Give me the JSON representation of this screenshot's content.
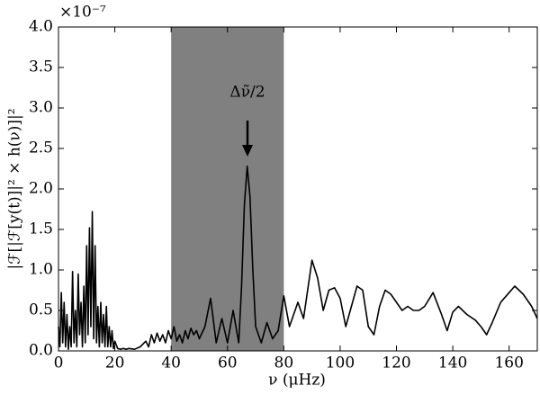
{
  "chart_data": {
    "type": "line",
    "x_label": "ν (μHz)",
    "y_label": "|ℱ[|ℱ[y(t)]|² × h(ν)]|²",
    "y_offset_label": "×10⁻⁷",
    "annotation": "Δν̃/2",
    "shaded_span": [
      40,
      80
    ],
    "shade_color": "#808080",
    "color": "#000000",
    "x": [
      0,
      0.5,
      1,
      1.5,
      2,
      2.5,
      3,
      3.5,
      4,
      4.5,
      5,
      5.5,
      6,
      6.5,
      7,
      7.5,
      8,
      8.5,
      9,
      9.5,
      10,
      10.5,
      11,
      11.5,
      12,
      12.5,
      13,
      13.5,
      14,
      14.5,
      15,
      15.5,
      16,
      16.5,
      17,
      17.5,
      18,
      18.5,
      19,
      19.5,
      20,
      21,
      22,
      23,
      24,
      25,
      27,
      29,
      31,
      32,
      33,
      34,
      35,
      36,
      37,
      38,
      39,
      40,
      41,
      42,
      43,
      44,
      45,
      46,
      47,
      48,
      49,
      50,
      52,
      54,
      56,
      58,
      60,
      62,
      64,
      65,
      66,
      67,
      68,
      69,
      70,
      72,
      74,
      76,
      78,
      80,
      82,
      85,
      87,
      90,
      92,
      94,
      96,
      98,
      100,
      102,
      104,
      106,
      108,
      110,
      112,
      114,
      116,
      118,
      120,
      122,
      124,
      126,
      128,
      130,
      133,
      136,
      138,
      140,
      142,
      145,
      148,
      150,
      152,
      154,
      157,
      160,
      162,
      165,
      168,
      170
    ],
    "values": [
      0.3,
      0.05,
      0.72,
      0.1,
      0.6,
      0.05,
      0.45,
      0.02,
      0.3,
      0.05,
      0.98,
      0.1,
      0.5,
      0.05,
      0.95,
      0.2,
      0.6,
      0.05,
      0.8,
      0.1,
      1.3,
      0.2,
      1.52,
      0.3,
      1.72,
      0.15,
      1.3,
      0.1,
      0.55,
      0.05,
      0.6,
      0.1,
      0.45,
      0.05,
      0.55,
      0.05,
      0.3,
      0.05,
      0.25,
      0.03,
      0.12,
      0.03,
      0.02,
      0.03,
      0.02,
      0.03,
      0.02,
      0.05,
      0.12,
      0.05,
      0.2,
      0.1,
      0.22,
      0.12,
      0.2,
      0.1,
      0.25,
      0.15,
      0.3,
      0.12,
      0.2,
      0.1,
      0.25,
      0.15,
      0.28,
      0.2,
      0.25,
      0.15,
      0.3,
      0.65,
      0.1,
      0.4,
      0.1,
      0.5,
      0.1,
      0.8,
      1.8,
      2.28,
      1.9,
      1.0,
      0.3,
      0.1,
      0.35,
      0.15,
      0.25,
      0.68,
      0.3,
      0.6,
      0.4,
      1.12,
      0.9,
      0.5,
      0.75,
      0.78,
      0.65,
      0.3,
      0.55,
      0.8,
      0.75,
      0.3,
      0.2,
      0.55,
      0.75,
      0.7,
      0.6,
      0.5,
      0.55,
      0.5,
      0.5,
      0.55,
      0.72,
      0.45,
      0.25,
      0.48,
      0.55,
      0.45,
      0.38,
      0.3,
      0.2,
      0.35,
      0.6,
      0.72,
      0.8,
      0.7,
      0.55,
      0.4
    ],
    "xlim": [
      0,
      170
    ],
    "xticks": [
      0,
      20,
      40,
      60,
      80,
      100,
      120,
      140,
      160
    ],
    "ylim": [
      0,
      4
    ],
    "yticks": [
      {
        "value": 0,
        "label": "0.0"
      },
      0.5,
      {
        "value": 1,
        "label": "1.0"
      },
      1.5,
      {
        "value": 2,
        "label": "2.0"
      },
      2.5,
      {
        "value": 3,
        "label": "3.0"
      },
      3.5,
      {
        "value": 4,
        "label": "4.0"
      }
    ]
  }
}
